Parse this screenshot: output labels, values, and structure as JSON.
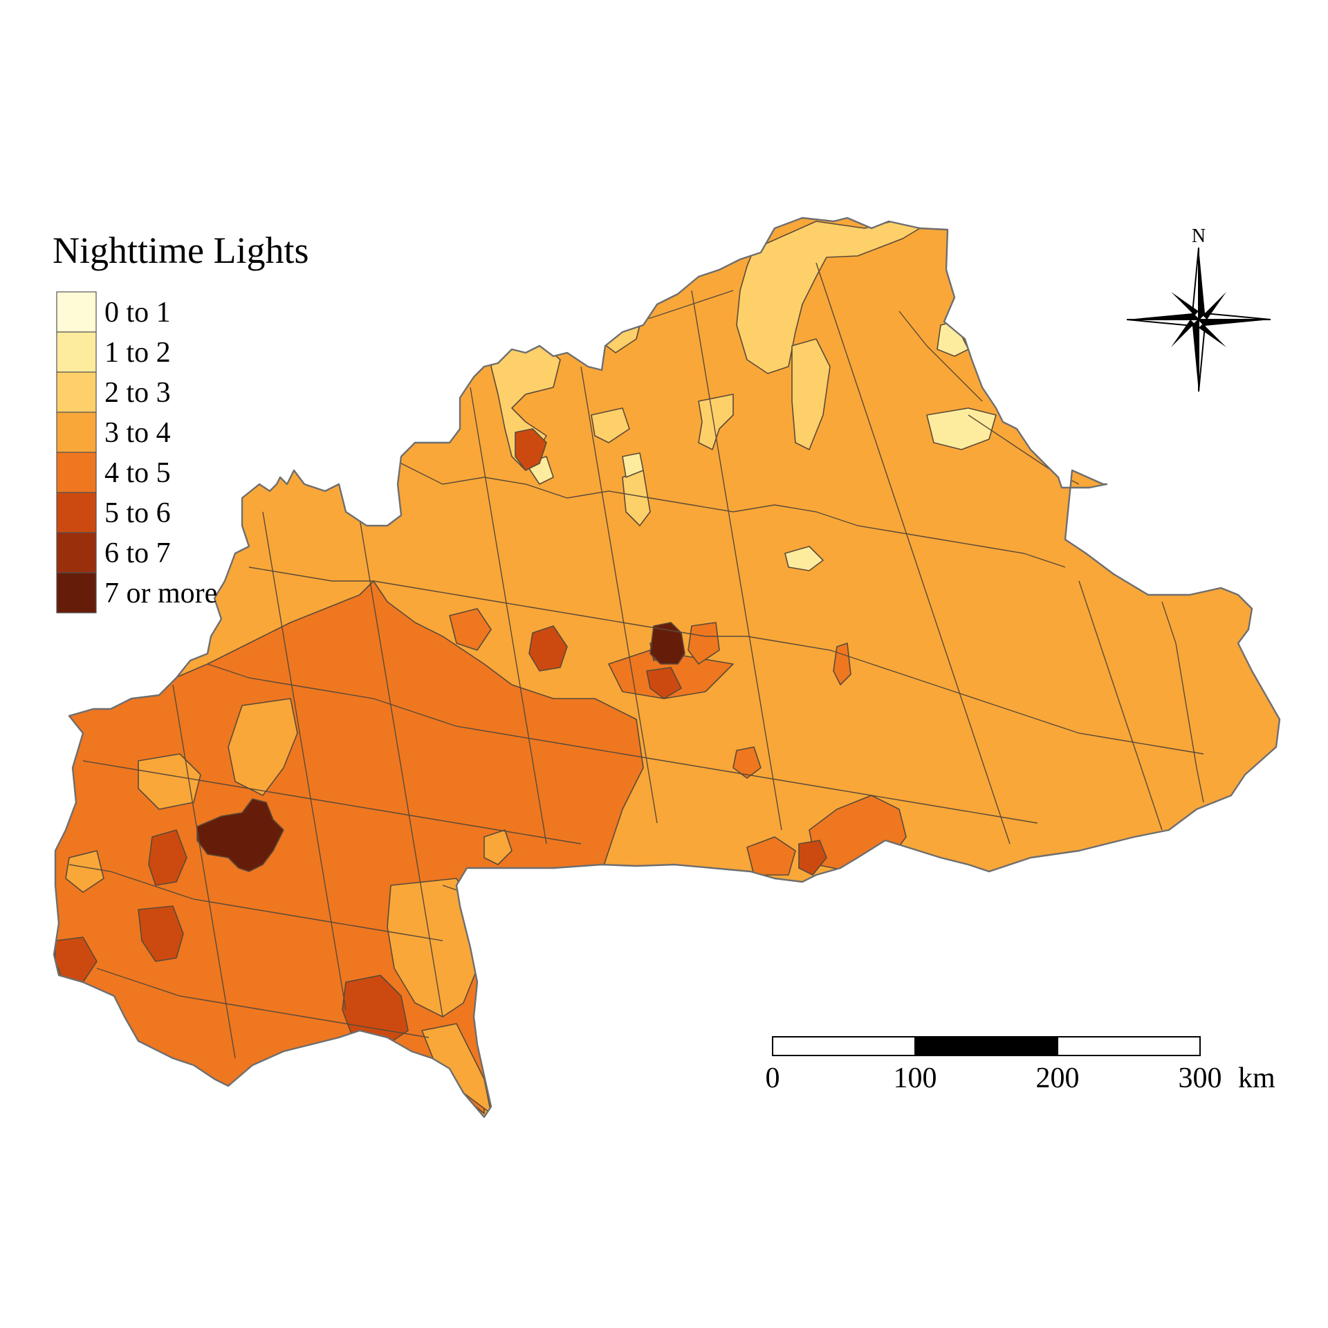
{
  "legend": {
    "title": "Nighttime Lights",
    "classes": [
      {
        "label": "0 to 1",
        "color": "#fffbd6"
      },
      {
        "label": "1 to 2",
        "color": "#feec9e"
      },
      {
        "label": "2 to 3",
        "color": "#fdd06a"
      },
      {
        "label": "3 to 4",
        "color": "#f9a739"
      },
      {
        "label": "4 to 5",
        "color": "#ef7720"
      },
      {
        "label": "5 to 6",
        "color": "#cc4a10"
      },
      {
        "label": "6 to 7",
        "color": "#9a2f0b"
      },
      {
        "label": "7 or more",
        "color": "#651d0a"
      }
    ]
  },
  "north_arrow": {
    "label": "N",
    "icon": "compass-rose-icon"
  },
  "scale_bar": {
    "ticks": [
      "0",
      "100",
      "200",
      "300"
    ],
    "unit": "km"
  }
}
